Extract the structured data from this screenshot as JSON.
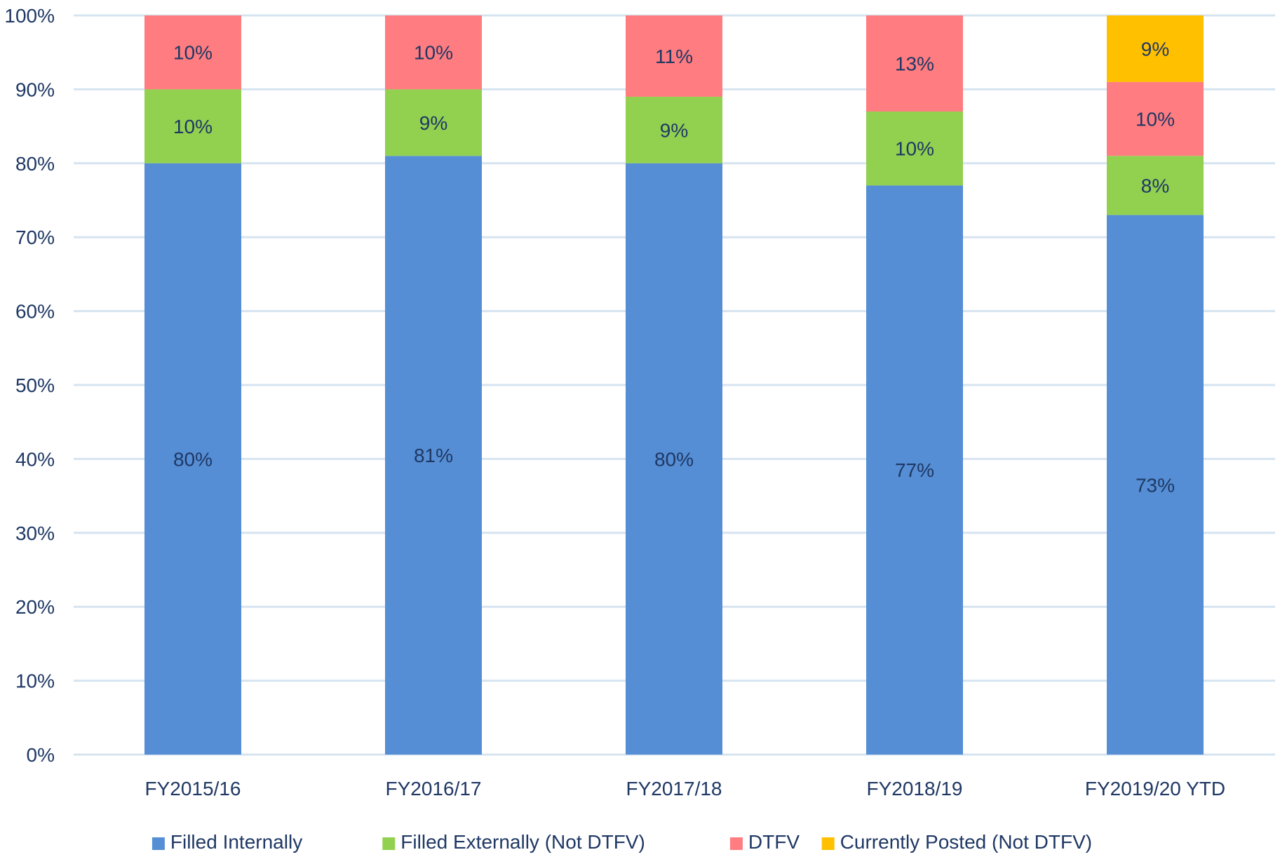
{
  "chart_data": {
    "type": "bar",
    "stacked": true,
    "title": "",
    "xlabel": "",
    "ylabel": "",
    "ylim": [
      0,
      100
    ],
    "ytick_values": [
      0,
      10,
      20,
      30,
      40,
      50,
      60,
      70,
      80,
      90,
      100
    ],
    "ytick_labels": [
      "0%",
      "10%",
      "20%",
      "30%",
      "40%",
      "50%",
      "60%",
      "70%",
      "80%",
      "90%",
      "100%"
    ],
    "grid": true,
    "legend_position": "bottom",
    "categories": [
      "FY2015/16",
      "FY2016/17",
      "FY2017/18",
      "FY2018/19",
      "FY2019/20 YTD"
    ],
    "series": [
      {
        "name": "Filled Internally",
        "color": "#558ED5",
        "values": [
          80,
          81,
          80,
          77,
          73
        ],
        "labels": [
          "80%",
          "81%",
          "80%",
          "77%",
          "73%"
        ]
      },
      {
        "name": "Filled Externally (Not DTFV)",
        "color": "#92D050",
        "values": [
          10,
          9,
          9,
          10,
          8
        ],
        "labels": [
          "10%",
          "9%",
          "9%",
          "10%",
          "8%"
        ]
      },
      {
        "name": "DTFV",
        "color": "#FF7C80",
        "values": [
          10,
          10,
          11,
          13,
          10
        ],
        "labels": [
          "10%",
          "10%",
          "11%",
          "13%",
          "10%"
        ]
      },
      {
        "name": "Currently Posted (Not DTFV)",
        "color": "#FFC000",
        "values": [
          0,
          0,
          0,
          0,
          9
        ],
        "labels": [
          "",
          "",
          "",
          "",
          "9%"
        ]
      }
    ],
    "colors": {
      "gridline": "#D6E4F0",
      "axis_text": "#1F3864",
      "bar_label_text": "#1F3864"
    }
  }
}
